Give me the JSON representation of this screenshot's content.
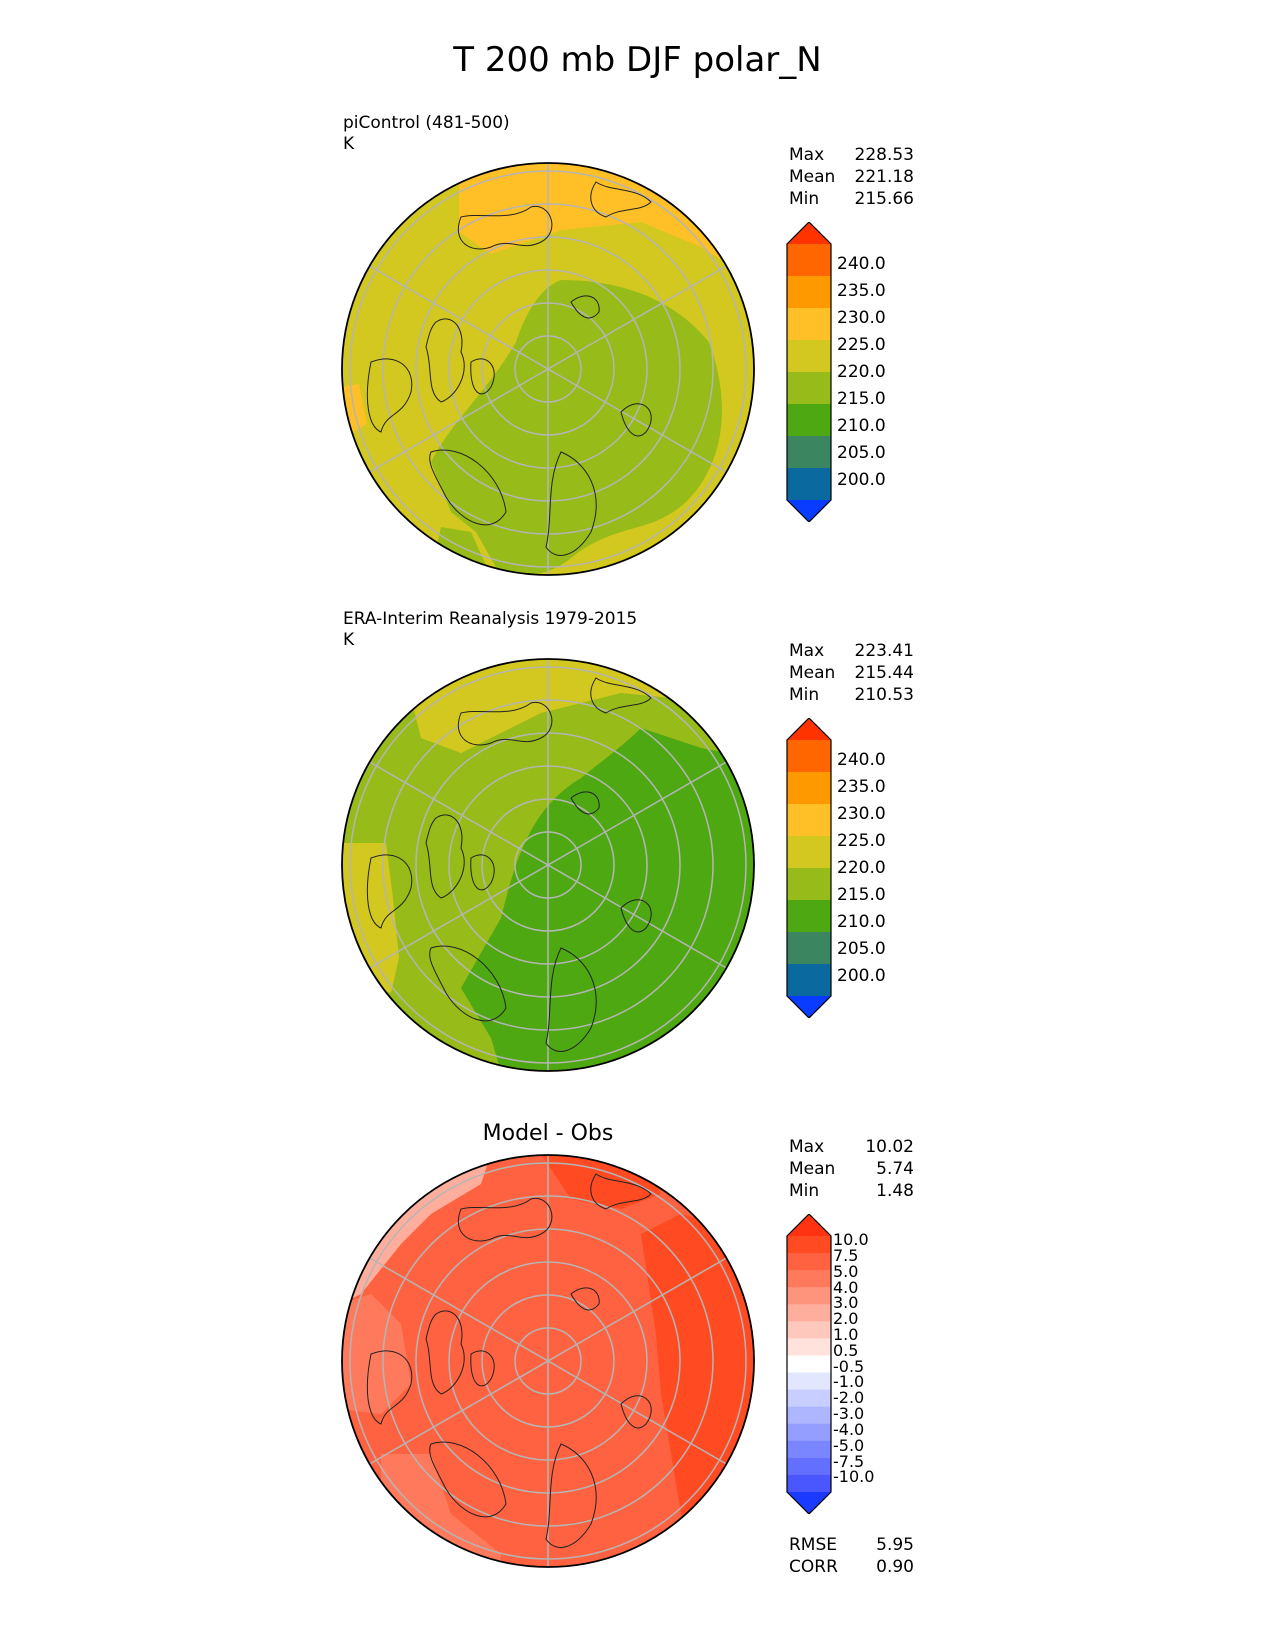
{
  "figure_title": "T 200 mb DJF polar_N",
  "panels": [
    {
      "label_line1": "piControl (481-500)",
      "label_line2": "K",
      "stats": [
        [
          "Max",
          "228.53"
        ],
        [
          "Mean",
          "221.18"
        ],
        [
          "Min",
          "215.66"
        ]
      ]
    },
    {
      "label_line1": "ERA-Interim Reanalysis 1979-2015",
      "label_line2": "K",
      "stats": [
        [
          "Max",
          "223.41"
        ],
        [
          "Mean",
          "215.44"
        ],
        [
          "Min",
          "210.53"
        ]
      ]
    },
    {
      "title": "Model - Obs",
      "stats": [
        [
          "Max",
          "10.02"
        ],
        [
          "Mean",
          "5.74"
        ],
        [
          "Min",
          "1.48"
        ]
      ],
      "footer": [
        [
          "RMSE",
          "5.95"
        ],
        [
          "CORR",
          "0.90"
        ]
      ]
    }
  ],
  "colorbars": {
    "field": {
      "ticks": [
        "240.0",
        "235.0",
        "230.0",
        "225.0",
        "220.0",
        "215.0",
        "210.0",
        "205.0",
        "200.0"
      ],
      "colors": [
        "#ff3300",
        "#ff6600",
        "#ff9900",
        "#ffbf26",
        "#d3c81f",
        "#97bb18",
        "#4ea811",
        "#3b8660",
        "#0a6aa0",
        "#0a3cff"
      ]
    },
    "diff": {
      "ticks": [
        "10.0",
        "7.5",
        "5.0",
        "4.0",
        "3.0",
        "2.0",
        "1.0",
        "0.5",
        "-0.5",
        "-1.0",
        "-2.0",
        "-3.0",
        "-4.0",
        "-5.0",
        "-7.5",
        "-10.0"
      ],
      "colors": [
        "#ff3311",
        "#ff4a22",
        "#ff6240",
        "#ff7a5c",
        "#ff947c",
        "#ffae9d",
        "#ffc8bd",
        "#ffe2dc",
        "#ffffff",
        "#e2e6ff",
        "#c8ceff",
        "#aeb6ff",
        "#949eff",
        "#7a86ff",
        "#626fff",
        "#4a57ff",
        "#1a3bff"
      ]
    }
  },
  "chart_data": [
    {
      "type": "heatmap",
      "title": "piControl (481-500)",
      "units": "K",
      "projection": "north polar stereographic",
      "stats": {
        "max": 228.53,
        "mean": 221.18,
        "min": 215.66
      },
      "levels": [
        200,
        205,
        210,
        215,
        220,
        225,
        230,
        235,
        240
      ]
    },
    {
      "type": "heatmap",
      "title": "ERA-Interim Reanalysis 1979-2015",
      "units": "K",
      "projection": "north polar stereographic",
      "stats": {
        "max": 223.41,
        "mean": 215.44,
        "min": 210.53
      },
      "levels": [
        200,
        205,
        210,
        215,
        220,
        225,
        230,
        235,
        240
      ]
    },
    {
      "type": "heatmap",
      "title": "Model - Obs",
      "projection": "north polar stereographic",
      "stats": {
        "max": 10.02,
        "mean": 5.74,
        "min": 1.48
      },
      "rmse": 5.95,
      "corr": 0.9,
      "levels": [
        -10,
        -7.5,
        -5,
        -4,
        -3,
        -2,
        -1,
        -0.5,
        0.5,
        1,
        2,
        3,
        4,
        5,
        7.5,
        10
      ]
    }
  ]
}
